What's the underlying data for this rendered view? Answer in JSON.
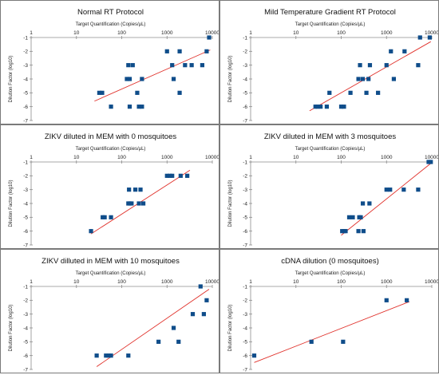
{
  "chart_data": [
    {
      "type": "scatter",
      "title": "Normal RT Protocol",
      "xlabel": "Target Quantification (Copies/µL)",
      "ylabel": "Dilution Factor (log10)",
      "x_scale": "log",
      "xlim": [
        1,
        10000
      ],
      "ylim": [
        -7,
        -1
      ],
      "x_ticks": [
        "1",
        "10",
        "100",
        "1000",
        "10000"
      ],
      "y_ticks": [
        "-1",
        "-2",
        "-3",
        "-4",
        "-5",
        "-6",
        "-7"
      ],
      "series": [
        {
          "points": [
            [
              32,
              -5
            ],
            [
              37,
              -5
            ],
            [
              58,
              -6
            ],
            [
              130,
              -4
            ],
            [
              140,
              -3
            ],
            [
              150,
              -4
            ],
            [
              150,
              -6
            ],
            [
              175,
              -3
            ],
            [
              220,
              -5
            ],
            [
              240,
              -6
            ],
            [
              280,
              -6
            ],
            [
              280,
              -4
            ],
            [
              1000,
              -2
            ],
            [
              1300,
              -3
            ],
            [
              1400,
              -4
            ],
            [
              1900,
              -2
            ],
            [
              1900,
              -5
            ],
            [
              2500,
              -3
            ],
            [
              3500,
              -3
            ],
            [
              6000,
              -3
            ],
            [
              7500,
              -2
            ],
            [
              8500,
              -1
            ]
          ],
          "trendline": [
            [
              25,
              -5.6
            ],
            [
              9000,
              -1.9
            ]
          ]
        }
      ]
    },
    {
      "type": "scatter",
      "title": "Mild Temperature Gradient RT Protocol",
      "xlabel": "Target Quantification (Copies/µL)",
      "ylabel": "Dilution Factor (log10)",
      "x_scale": "log",
      "xlim": [
        1,
        10000
      ],
      "ylim": [
        -7,
        -1
      ],
      "x_ticks": [
        "1",
        "10",
        "100",
        "1000",
        "10000"
      ],
      "y_ticks": [
        "-1",
        "-2",
        "-3",
        "-4",
        "-5",
        "-6",
        "-7"
      ],
      "series": [
        {
          "points": [
            [
              27,
              -6
            ],
            [
              30,
              -6
            ],
            [
              35,
              -6
            ],
            [
              48,
              -6
            ],
            [
              55,
              -5
            ],
            [
              100,
              -6
            ],
            [
              115,
              -6
            ],
            [
              160,
              -5
            ],
            [
              240,
              -4
            ],
            [
              260,
              -3
            ],
            [
              300,
              -4
            ],
            [
              360,
              -5
            ],
            [
              400,
              -4
            ],
            [
              430,
              -3
            ],
            [
              650,
              -5
            ],
            [
              1000,
              -3
            ],
            [
              1250,
              -2
            ],
            [
              1450,
              -4
            ],
            [
              2500,
              -2
            ],
            [
              5000,
              -3
            ],
            [
              5500,
              -1
            ],
            [
              9000,
              -1
            ]
          ],
          "trendline": [
            [
              20,
              -6.3
            ],
            [
              9500,
              -1.3
            ]
          ]
        }
      ]
    },
    {
      "type": "scatter",
      "title": "ZIKV diluted in MEM with 0 mosquitoes",
      "xlabel": "Target Quantification (Copies/µL)",
      "ylabel": "Dilution Factor (log10)",
      "x_scale": "log",
      "xlim": [
        1,
        10000
      ],
      "ylim": [
        -7,
        -1
      ],
      "x_ticks": [
        "1",
        "10",
        "100",
        "1000",
        "10000"
      ],
      "y_ticks": [
        "-1",
        "-2",
        "-3",
        "-4",
        "-5",
        "-6",
        "-7"
      ],
      "series": [
        {
          "points": [
            [
              21,
              -6
            ],
            [
              38,
              -5
            ],
            [
              42,
              -5
            ],
            [
              58,
              -5
            ],
            [
              140,
              -4
            ],
            [
              145,
              -3
            ],
            [
              150,
              -4
            ],
            [
              165,
              -4
            ],
            [
              200,
              -3
            ],
            [
              240,
              -4
            ],
            [
              260,
              -3
            ],
            [
              300,
              -4
            ],
            [
              1000,
              -2
            ],
            [
              1150,
              -2
            ],
            [
              1300,
              -2
            ],
            [
              2000,
              -2
            ],
            [
              2800,
              -2
            ]
          ],
          "trendline": [
            [
              21,
              -6.2
            ],
            [
              3200,
              -1.6
            ]
          ]
        }
      ]
    },
    {
      "type": "scatter",
      "title": "ZIKV diluted in MEM with 3 mosquitoes",
      "xlabel": "Target Quantification (Copies/µL)",
      "ylabel": "Dilution Factor (log10)",
      "x_scale": "log",
      "xlim": [
        1,
        10000
      ],
      "ylim": [
        -7,
        -1
      ],
      "x_ticks": [
        "1",
        "10",
        "100",
        "1000",
        "10000"
      ],
      "y_ticks": [
        "-1",
        "-2",
        "-3",
        "-4",
        "-5",
        "-6",
        "-7"
      ],
      "series": [
        {
          "points": [
            [
              105,
              -6
            ],
            [
              115,
              -6
            ],
            [
              125,
              -6
            ],
            [
              150,
              -5
            ],
            [
              180,
              -5
            ],
            [
              240,
              -6
            ],
            [
              250,
              -5
            ],
            [
              270,
              -5
            ],
            [
              300,
              -4
            ],
            [
              310,
              -6
            ],
            [
              420,
              -4
            ],
            [
              1000,
              -3
            ],
            [
              1200,
              -3
            ],
            [
              2400,
              -3
            ],
            [
              5000,
              -3
            ],
            [
              8500,
              -1
            ],
            [
              9500,
              -1
            ]
          ],
          "trendline": [
            [
              100,
              -6.3
            ],
            [
              9500,
              -1.1
            ]
          ]
        }
      ]
    },
    {
      "type": "scatter",
      "title": "ZIKV dilluted in MEM with 10 mosquitoes",
      "xlabel": "Target Quantification (Copies/µL)",
      "ylabel": "Dilution Factor (log10)",
      "x_scale": "log",
      "xlim": [
        1,
        10000
      ],
      "ylim": [
        -7,
        -1
      ],
      "x_ticks": [
        "1",
        "10",
        "100",
        "1000",
        "10000"
      ],
      "y_ticks": [
        "-1",
        "-2",
        "-3",
        "-4",
        "-5",
        "-6",
        "-7"
      ],
      "series": [
        {
          "points": [
            [
              28,
              -6
            ],
            [
              45,
              -6
            ],
            [
              52,
              -6
            ],
            [
              58,
              -6
            ],
            [
              140,
              -6
            ],
            [
              650,
              -5
            ],
            [
              1400,
              -4
            ],
            [
              1800,
              -5
            ],
            [
              3700,
              -3
            ],
            [
              5500,
              -1
            ],
            [
              6500,
              -3
            ],
            [
              7500,
              -2
            ]
          ],
          "trendline": [
            [
              28,
              -6.8
            ],
            [
              8500,
              -1.2
            ]
          ]
        }
      ]
    },
    {
      "type": "scatter",
      "title": "cDNA dilution (0 mosquitoes)",
      "xlabel": "Target Quantification (Copies/µL)",
      "ylabel": "Dilution Factor (log10)",
      "x_scale": "log",
      "xlim": [
        1,
        10000
      ],
      "ylim": [
        -7,
        -1
      ],
      "x_ticks": [
        "1",
        "10",
        "100",
        "1000",
        "10000"
      ],
      "y_ticks": [
        "-1",
        "-2",
        "-3",
        "-4",
        "-5",
        "-6",
        "-7"
      ],
      "series": [
        {
          "points": [
            [
              1.2,
              -6
            ],
            [
              22,
              -5
            ],
            [
              110,
              -5
            ],
            [
              1000,
              -2
            ],
            [
              2800,
              -2
            ]
          ],
          "trendline": [
            [
              1.2,
              -6.5
            ],
            [
              3200,
              -2.1
            ]
          ]
        }
      ]
    }
  ],
  "colors": {
    "marker": "#0f4d8a",
    "trendline": "#e0302a",
    "axis": "#8c8c8c",
    "gridline": "#dddddd"
  }
}
